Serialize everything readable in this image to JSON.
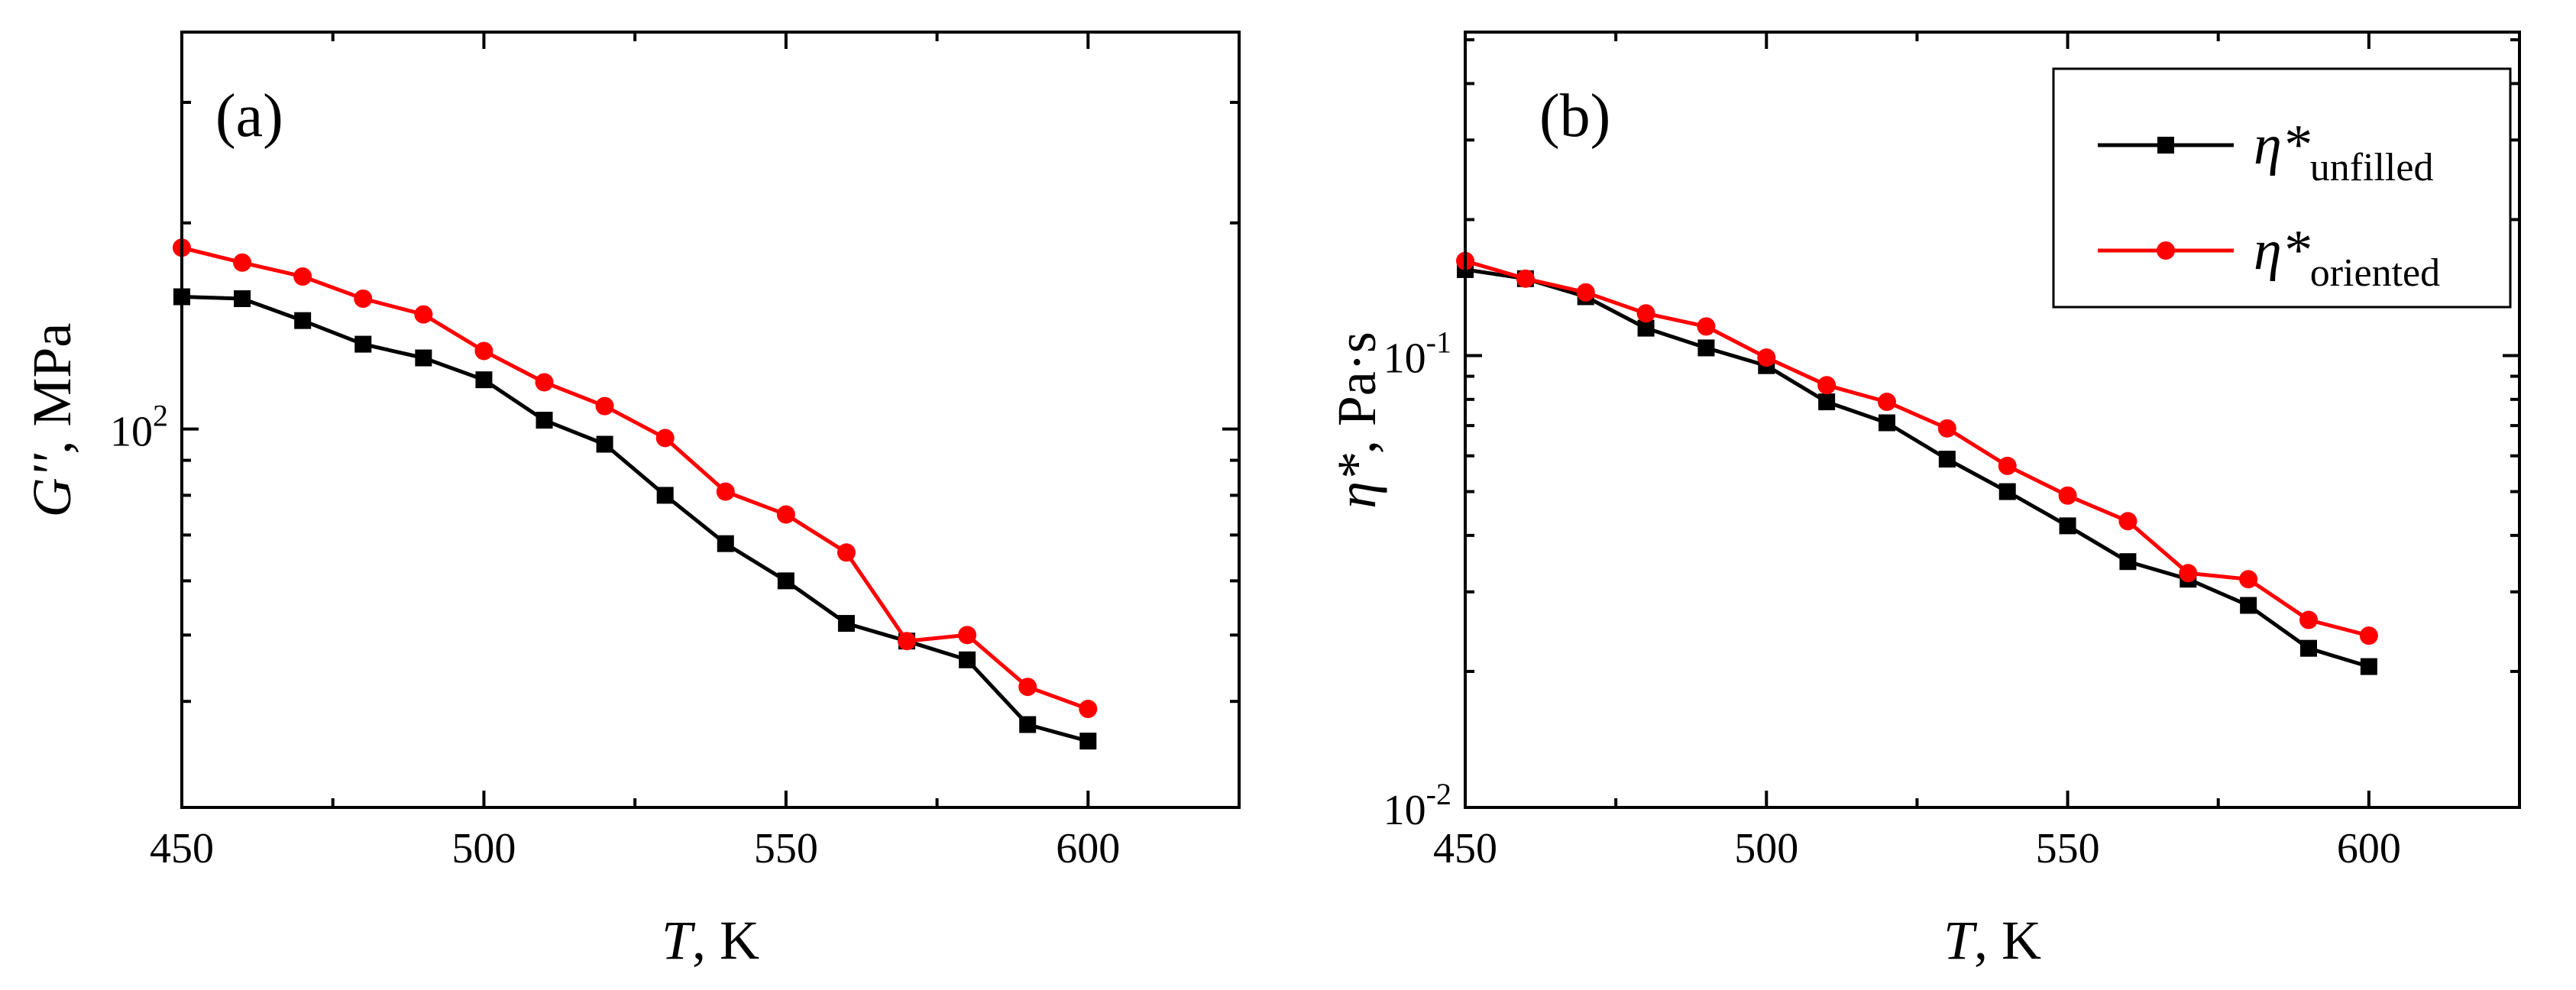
{
  "chart_data": [
    {
      "type": "line",
      "panel_label": "(a)",
      "xlabel": {
        "var": "T",
        "rest": ", K"
      },
      "ylabel": {
        "var": "G''",
        "rest": ", MPa"
      },
      "x_scale": "linear",
      "y_scale": "log",
      "xlim": [
        450,
        625
      ],
      "ylim": [
        28,
        380
      ],
      "x_ticks": [
        450,
        500,
        550,
        600
      ],
      "x_tick_labels": [
        "450",
        "500",
        "550",
        "600"
      ],
      "y_major_ticks": [
        100
      ],
      "y_tick_labels": [
        {
          "base": "10",
          "exp": "2"
        }
      ],
      "y_minor_ticks": [
        40,
        50,
        60,
        70,
        80,
        90,
        200,
        300
      ],
      "x": [
        450,
        460,
        470,
        480,
        490,
        500,
        510,
        520,
        530,
        540,
        550,
        560,
        570,
        580,
        590,
        600
      ],
      "series": [
        {
          "name": "unfilled",
          "color": "#000000",
          "marker": "square",
          "values": [
            156,
            155,
            144,
            133,
            127,
            118,
            103,
            95,
            80,
            68,
            60,
            52,
            49,
            46,
            37,
            35
          ]
        },
        {
          "name": "oriented",
          "color": "#ff0000",
          "marker": "circle",
          "values": [
            184,
            175,
            167,
            155,
            147,
            130,
            117,
            108,
            97,
            81,
            75,
            66,
            49,
            50,
            42,
            39
          ]
        }
      ]
    },
    {
      "type": "line",
      "panel_label": "(b)",
      "xlabel": {
        "var": "T",
        "rest": ", K"
      },
      "ylabel": {
        "var": "η*",
        "rest": ", Pa·s"
      },
      "x_scale": "linear",
      "y_scale": "log",
      "xlim": [
        450,
        625
      ],
      "ylim": [
        0.01,
        0.52
      ],
      "x_ticks": [
        450,
        500,
        550,
        600
      ],
      "x_tick_labels": [
        "450",
        "500",
        "550",
        "600"
      ],
      "y_major_ticks": [
        0.01,
        0.1
      ],
      "y_tick_labels": [
        {
          "base": "10",
          "exp": "-2"
        },
        {
          "base": "10",
          "exp": "-1"
        }
      ],
      "y_minor_ticks": [
        0.02,
        0.03,
        0.04,
        0.05,
        0.06,
        0.07,
        0.08,
        0.09,
        0.2,
        0.3,
        0.4,
        0.5
      ],
      "x": [
        450,
        460,
        470,
        480,
        490,
        500,
        510,
        520,
        530,
        540,
        550,
        560,
        570,
        580,
        590,
        600
      ],
      "series": [
        {
          "name": "unfilled",
          "color": "#000000",
          "marker": "square",
          "values": [
            0.155,
            0.148,
            0.135,
            0.115,
            0.104,
            0.095,
            0.079,
            0.071,
            0.059,
            0.05,
            0.042,
            0.035,
            0.032,
            0.028,
            0.0225,
            0.0205
          ]
        },
        {
          "name": "oriented",
          "color": "#ff0000",
          "marker": "circle",
          "values": [
            0.162,
            0.148,
            0.138,
            0.124,
            0.116,
            0.099,
            0.086,
            0.079,
            0.069,
            0.057,
            0.049,
            0.043,
            0.033,
            0.032,
            0.026,
            0.024
          ]
        }
      ],
      "legend": {
        "position": "top-right",
        "entries": [
          {
            "symbol": "η*",
            "subscript": "unfilled",
            "color": "#000000",
            "marker": "square"
          },
          {
            "symbol": "η*",
            "subscript": "oriented",
            "color": "#ff0000",
            "marker": "circle"
          }
        ]
      }
    }
  ]
}
